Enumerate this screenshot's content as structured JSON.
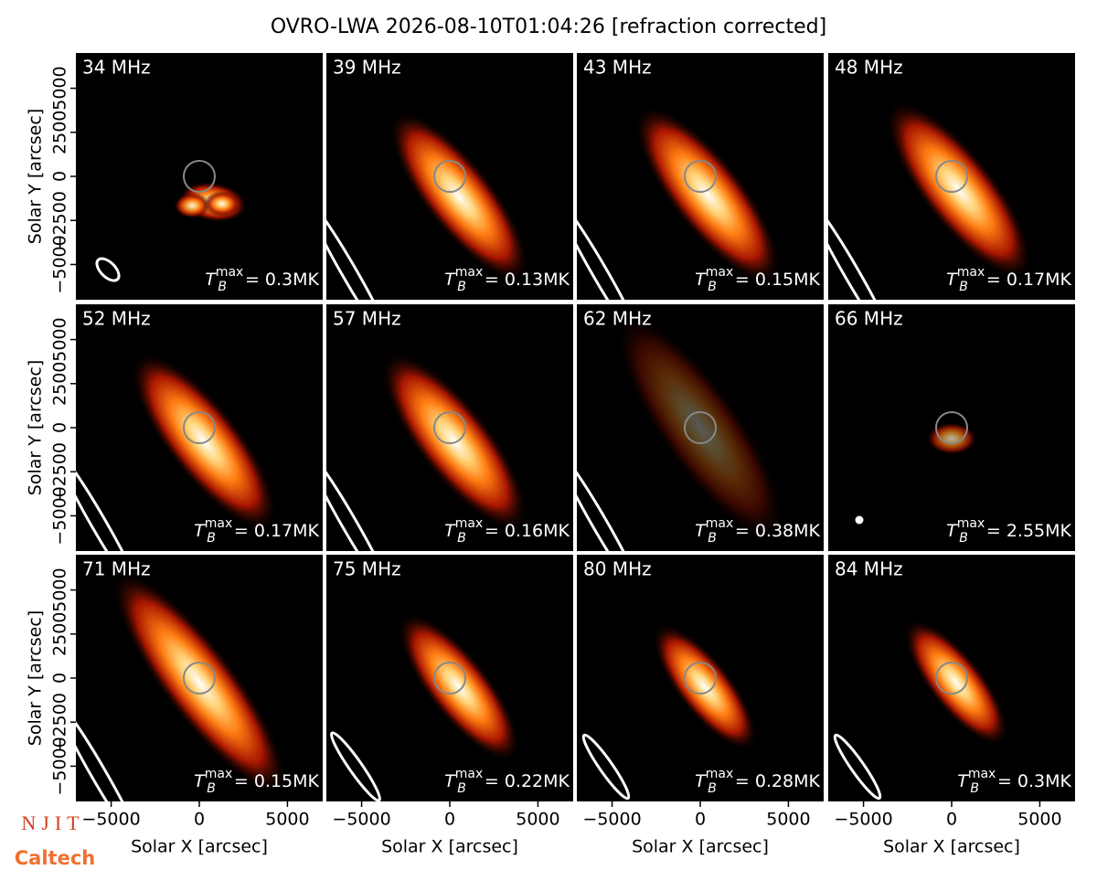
{
  "title": "OVRO-LWA 2026-08-10T01:04:26 [refraction corrected]",
  "logos": [
    "NJIT",
    "Caltech"
  ],
  "chart_data": [
    {
      "type": "image",
      "label": "34 MHz",
      "annotation": {
        "symbol": "T",
        "subscript": "B",
        "superscript": "max",
        "text": "= 0.3MK"
      },
      "xlim": [
        -7000,
        7000
      ],
      "ylim": [
        -7000,
        7000
      ],
      "ylabel": "Solar Y [arcsec]",
      "yticks": [
        {
          "value": -5000,
          "label": "−5000"
        },
        {
          "value": -2500,
          "label": "−2500"
        },
        0,
        2500,
        5000
      ]
    },
    {
      "type": "image",
      "label": "39 MHz",
      "annotation": {
        "symbol": "T",
        "subscript": "B",
        "superscript": "max",
        "text": "= 0.13MK"
      },
      "xlim": [
        -7000,
        7000
      ],
      "ylim": [
        -7000,
        7000
      ]
    },
    {
      "type": "image",
      "label": "43 MHz",
      "annotation": {
        "symbol": "T",
        "subscript": "B",
        "superscript": "max",
        "text": "= 0.15MK"
      },
      "xlim": [
        -7000,
        7000
      ],
      "ylim": [
        -7000,
        7000
      ]
    },
    {
      "type": "image",
      "label": "48 MHz",
      "annotation": {
        "symbol": "T",
        "subscript": "B",
        "superscript": "max",
        "text": "= 0.17MK"
      },
      "xlim": [
        -7000,
        7000
      ],
      "ylim": [
        -7000,
        7000
      ]
    },
    {
      "type": "image",
      "label": "52 MHz",
      "annotation": {
        "symbol": "T",
        "subscript": "B",
        "superscript": "max",
        "text": "= 0.17MK"
      },
      "xlim": [
        -7000,
        7000
      ],
      "ylim": [
        -7000,
        7000
      ],
      "ylabel": "Solar Y [arcsec]",
      "yticks": [
        {
          "value": -5000,
          "label": "−5000"
        },
        {
          "value": -2500,
          "label": "−2500"
        },
        0,
        2500,
        5000
      ]
    },
    {
      "type": "image",
      "label": "57 MHz",
      "annotation": {
        "symbol": "T",
        "subscript": "B",
        "superscript": "max",
        "text": "= 0.16MK"
      },
      "xlim": [
        -7000,
        7000
      ],
      "ylim": [
        -7000,
        7000
      ]
    },
    {
      "type": "image",
      "label": "62 MHz",
      "annotation": {
        "symbol": "T",
        "subscript": "B",
        "superscript": "max",
        "text": "= 0.38MK"
      },
      "xlim": [
        -7000,
        7000
      ],
      "ylim": [
        -7000,
        7000
      ]
    },
    {
      "type": "image",
      "label": "66 MHz",
      "annotation": {
        "symbol": "T",
        "subscript": "B",
        "superscript": "max",
        "text": "= 2.55MK"
      },
      "xlim": [
        -7000,
        7000
      ],
      "ylim": [
        -7000,
        7000
      ]
    },
    {
      "type": "image",
      "label": "71 MHz",
      "annotation": {
        "symbol": "T",
        "subscript": "B",
        "superscript": "max",
        "text": "= 0.15MK"
      },
      "xlim": [
        -7000,
        7000
      ],
      "ylim": [
        -7000,
        7000
      ],
      "ylabel": "Solar Y [arcsec]",
      "yticks": [
        {
          "value": -5000,
          "label": "−5000"
        },
        {
          "value": -2500,
          "label": "−2500"
        },
        0,
        2500,
        5000
      ],
      "xlabel": "Solar X [arcsec]",
      "xticks": [
        {
          "value": -5000,
          "label": "−5000"
        },
        0,
        5000
      ]
    },
    {
      "type": "image",
      "label": "75 MHz",
      "annotation": {
        "symbol": "T",
        "subscript": "B",
        "superscript": "max",
        "text": "= 0.22MK"
      },
      "xlim": [
        -7000,
        7000
      ],
      "ylim": [
        -7000,
        7000
      ],
      "xlabel": "Solar X [arcsec]",
      "xticks": [
        {
          "value": -5000,
          "label": "−5000"
        },
        0,
        5000
      ]
    },
    {
      "type": "image",
      "label": "80 MHz",
      "annotation": {
        "symbol": "T",
        "subscript": "B",
        "superscript": "max",
        "text": "= 0.28MK"
      },
      "xlim": [
        -7000,
        7000
      ],
      "ylim": [
        -7000,
        7000
      ],
      "xlabel": "Solar X [arcsec]",
      "xticks": [
        {
          "value": -5000,
          "label": "−5000"
        },
        0,
        5000
      ]
    },
    {
      "type": "image",
      "label": "84 MHz",
      "annotation": {
        "symbol": "T",
        "subscript": "B",
        "superscript": "max",
        "text": "= 0.3MK"
      },
      "xlim": [
        -7000,
        7000
      ],
      "ylim": [
        -7000,
        7000
      ],
      "xlabel": "Solar X [arcsec]",
      "xticks": [
        {
          "value": -5000,
          "label": "−5000"
        },
        0,
        5000
      ]
    }
  ]
}
